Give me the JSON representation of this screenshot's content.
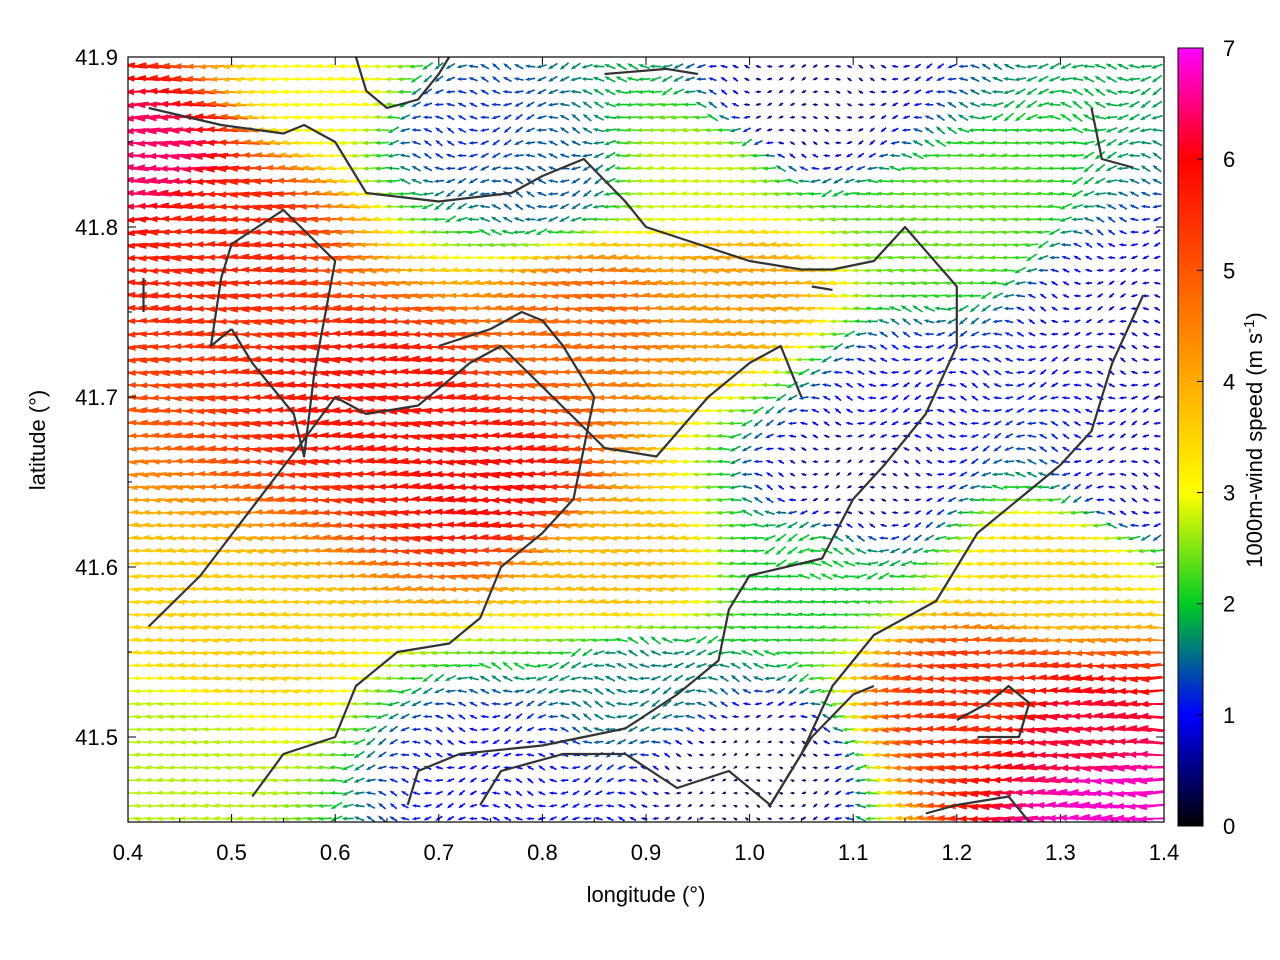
{
  "chart_data": {
    "type": "heatmap",
    "subtype": "wind-vector-field",
    "title": "",
    "xlabel": "longitude (°)",
    "ylabel": "latitude (°)",
    "colorbar_label_main": "1000m-wind speed (m s",
    "colorbar_label_sup": "-1",
    "colorbar_label_close": ")",
    "xlim": [
      0.4,
      1.4
    ],
    "ylim": [
      41.45,
      41.9
    ],
    "xticks": [
      "0.4",
      "0.5",
      "0.6",
      "0.7",
      "0.8",
      "0.9",
      "1.0",
      "1.1",
      "1.2",
      "1.3",
      "1.4"
    ],
    "yticks": [
      "41.5",
      "41.6",
      "41.7",
      "41.8",
      "41.9"
    ],
    "colorbar_range": [
      0,
      7
    ],
    "colorbar_ticks": [
      "0",
      "1",
      "2",
      "3",
      "4",
      "5",
      "6",
      "7"
    ],
    "colormap": [
      "#000000",
      "#0000ff",
      "#00cc22",
      "#ffff00",
      "#ffaa00",
      "#ff5500",
      "#ff0000",
      "#ff00ff"
    ],
    "speed_zones": [
      {
        "lon": 0.42,
        "lat": 41.84,
        "speed": 6.4
      },
      {
        "lon": 0.5,
        "lat": 41.8,
        "speed": 5.6
      },
      {
        "lon": 0.65,
        "lat": 41.7,
        "speed": 5.8
      },
      {
        "lon": 0.75,
        "lat": 41.65,
        "speed": 5.9
      },
      {
        "lon": 0.85,
        "lat": 41.75,
        "speed": 4.8
      },
      {
        "lon": 0.98,
        "lat": 41.76,
        "speed": 4.2
      },
      {
        "lon": 0.5,
        "lat": 41.55,
        "speed": 3.6
      },
      {
        "lon": 0.45,
        "lat": 41.5,
        "speed": 2.7
      },
      {
        "lon": 0.75,
        "lat": 41.48,
        "speed": 1.0
      },
      {
        "lon": 0.9,
        "lat": 41.53,
        "speed": 1.6
      },
      {
        "lon": 1.0,
        "lat": 41.48,
        "speed": 0.3
      },
      {
        "lon": 1.1,
        "lat": 41.65,
        "speed": 0.5
      },
      {
        "lon": 1.15,
        "lat": 41.7,
        "speed": 1.0
      },
      {
        "lon": 1.05,
        "lat": 41.87,
        "speed": 0.5
      },
      {
        "lon": 1.2,
        "lat": 41.8,
        "speed": 2.4
      },
      {
        "lon": 1.35,
        "lat": 41.75,
        "speed": 0.8
      },
      {
        "lon": 1.38,
        "lat": 41.65,
        "speed": 0.8
      },
      {
        "lon": 1.32,
        "lat": 41.5,
        "speed": 6.2
      },
      {
        "lon": 1.22,
        "lat": 41.52,
        "speed": 5.5
      },
      {
        "lon": 1.35,
        "lat": 41.46,
        "speed": 6.8
      },
      {
        "lon": 0.6,
        "lat": 41.88,
        "speed": 3.0
      },
      {
        "lon": 0.72,
        "lat": 41.86,
        "speed": 1.2
      },
      {
        "lon": 0.8,
        "lat": 41.83,
        "speed": 1.4
      },
      {
        "lon": 0.95,
        "lat": 41.83,
        "speed": 2.8
      },
      {
        "lon": 1.3,
        "lat": 41.6,
        "speed": 3.5
      },
      {
        "lon": 1.05,
        "lat": 41.6,
        "speed": 2.0
      },
      {
        "lon": 0.88,
        "lat": 41.6,
        "speed": 3.8
      }
    ],
    "flow_direction": "westward",
    "contours": [
      [
        [
          0.42,
          41.87
        ],
        [
          0.49,
          41.86
        ],
        [
          0.55,
          41.855
        ],
        [
          0.57,
          41.86
        ],
        [
          0.6,
          41.85
        ],
        [
          0.63,
          41.82
        ],
        [
          0.7,
          41.815
        ],
        [
          0.77,
          41.82
        ],
        [
          0.8,
          41.83
        ],
        [
          0.82,
          41.835
        ],
        [
          0.84,
          41.84
        ],
        [
          0.88,
          41.815
        ],
        [
          0.9,
          41.8
        ],
        [
          0.95,
          41.79
        ],
        [
          1.0,
          41.78
        ],
        [
          1.05,
          41.775
        ],
        [
          1.08,
          41.775
        ],
        [
          1.12,
          41.78
        ],
        [
          1.15,
          41.8
        ],
        [
          1.2,
          41.765
        ],
        [
          1.2,
          41.73
        ],
        [
          1.17,
          41.69
        ],
        [
          1.13,
          41.66
        ],
        [
          1.1,
          41.64
        ],
        [
          1.07,
          41.605
        ],
        [
          1.0,
          41.595
        ],
        [
          0.98,
          41.575
        ],
        [
          0.97,
          41.545
        ],
        [
          0.93,
          41.525
        ],
        [
          0.88,
          41.505
        ],
        [
          0.8,
          41.495
        ],
        [
          0.72,
          41.49
        ],
        [
          0.68,
          41.48
        ],
        [
          0.67,
          41.46
        ]
      ],
      [
        [
          0.42,
          41.565
        ],
        [
          0.47,
          41.595
        ],
        [
          0.52,
          41.635
        ],
        [
          0.57,
          41.675
        ],
        [
          0.6,
          41.7
        ],
        [
          0.63,
          41.69
        ],
        [
          0.68,
          41.695
        ],
        [
          0.73,
          41.72
        ],
        [
          0.76,
          41.73
        ],
        [
          0.81,
          41.7
        ],
        [
          0.86,
          41.67
        ],
        [
          0.91,
          41.665
        ],
        [
          0.96,
          41.7
        ],
        [
          1.0,
          41.72
        ],
        [
          1.03,
          41.73
        ],
        [
          1.05,
          41.7
        ]
      ],
      [
        [
          0.52,
          41.465
        ],
        [
          0.55,
          41.49
        ],
        [
          0.6,
          41.5
        ],
        [
          0.62,
          41.53
        ],
        [
          0.66,
          41.55
        ],
        [
          0.71,
          41.555
        ],
        [
          0.74,
          41.57
        ],
        [
          0.76,
          41.6
        ],
        [
          0.8,
          41.62
        ],
        [
          0.83,
          41.64
        ],
        [
          0.85,
          41.7
        ],
        [
          0.84,
          41.71
        ],
        [
          0.82,
          41.73
        ],
        [
          0.8,
          41.745
        ],
        [
          0.78,
          41.75
        ],
        [
          0.75,
          41.74
        ],
        [
          0.7,
          41.73
        ]
      ],
      [
        [
          0.74,
          41.46
        ],
        [
          0.76,
          41.48
        ],
        [
          0.82,
          41.49
        ],
        [
          0.88,
          41.49
        ],
        [
          0.93,
          41.47
        ],
        [
          0.98,
          41.48
        ],
        [
          1.02,
          41.46
        ],
        [
          1.06,
          41.5
        ],
        [
          1.1,
          41.525
        ],
        [
          1.12,
          41.53
        ]
      ],
      [
        [
          1.02,
          41.46
        ],
        [
          1.05,
          41.49
        ],
        [
          1.08,
          41.53
        ],
        [
          1.12,
          41.56
        ],
        [
          1.18,
          41.58
        ],
        [
          1.22,
          41.62
        ],
        [
          1.26,
          41.64
        ],
        [
          1.3,
          41.66
        ],
        [
          1.33,
          41.68
        ],
        [
          1.35,
          41.72
        ],
        [
          1.38,
          41.76
        ]
      ],
      [
        [
          0.5,
          41.74
        ],
        [
          0.52,
          41.72
        ],
        [
          0.56,
          41.69
        ],
        [
          0.57,
          41.665
        ],
        [
          0.58,
          41.715
        ],
        [
          0.6,
          41.78
        ],
        [
          0.55,
          41.81
        ],
        [
          0.5,
          41.79
        ],
        [
          0.49,
          41.77
        ],
        [
          0.48,
          41.73
        ],
        [
          0.5,
          41.74
        ]
      ],
      [
        [
          1.2,
          41.51
        ],
        [
          1.23,
          41.52
        ],
        [
          1.25,
          41.53
        ],
        [
          1.27,
          41.52
        ],
        [
          1.26,
          41.5
        ],
        [
          1.22,
          41.5
        ]
      ],
      [
        [
          1.17,
          41.455
        ],
        [
          1.2,
          41.46
        ],
        [
          1.25,
          41.465
        ],
        [
          1.27,
          41.45
        ]
      ],
      [
        [
          1.33,
          41.87
        ],
        [
          1.34,
          41.84
        ],
        [
          1.37,
          41.835
        ]
      ],
      [
        [
          0.62,
          41.9
        ],
        [
          0.63,
          41.88
        ],
        [
          0.65,
          41.87
        ],
        [
          0.68,
          41.875
        ],
        [
          0.7,
          41.89
        ],
        [
          0.71,
          41.9
        ]
      ],
      [
        [
          0.86,
          41.89
        ],
        [
          0.92,
          41.893
        ],
        [
          0.95,
          41.89
        ]
      ],
      [
        [
          0.415,
          41.77
        ],
        [
          0.415,
          41.75
        ]
      ],
      [
        [
          1.06,
          41.765
        ],
        [
          1.08,
          41.763
        ]
      ]
    ]
  }
}
